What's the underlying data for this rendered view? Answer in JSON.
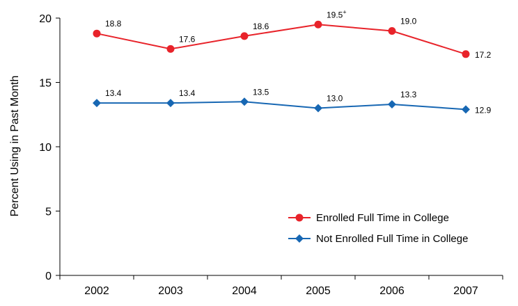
{
  "chart_data": {
    "type": "line",
    "ylabel": "Percent Using in Past Month",
    "categories": [
      "2002",
      "2003",
      "2004",
      "2005",
      "2006",
      "2007"
    ],
    "ylim": [
      0,
      20
    ],
    "yticks": [
      0,
      5,
      10,
      15,
      20
    ],
    "legend_position": "bottom-right",
    "series": [
      {
        "name": "Enrolled Full Time in College",
        "color": "#e8232a",
        "marker": "circle",
        "values": [
          18.8,
          17.6,
          18.6,
          19.5,
          19.0,
          17.2
        ],
        "labels": [
          "18.8",
          "17.6",
          "18.6",
          "19.5",
          "19.0",
          "17.2"
        ],
        "annotations": [
          "",
          "",
          "",
          "+",
          "",
          ""
        ]
      },
      {
        "name": "Not Enrolled Full Time in College",
        "color": "#1767b3",
        "marker": "diamond",
        "values": [
          13.4,
          13.4,
          13.5,
          13.0,
          13.3,
          12.9
        ],
        "labels": [
          "13.4",
          "13.4",
          "13.5",
          "13.0",
          "13.3",
          "12.9"
        ],
        "annotations": [
          "",
          "",
          "",
          "",
          "",
          ""
        ]
      }
    ]
  }
}
